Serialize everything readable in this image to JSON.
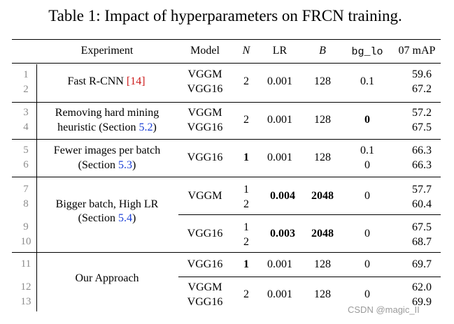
{
  "caption": "Table 1: Impact of hyperparameters on FRCN training.",
  "headers": {
    "experiment": "Experiment",
    "model": "Model",
    "n": "N",
    "lr": "LR",
    "b": "B",
    "bg_lo": "bg_lo",
    "map": "07 mAP"
  },
  "groups": [
    {
      "name": "Fast R-CNN",
      "ref": "[14]",
      "rows": [
        {
          "idx": "1",
          "model": "VGGM",
          "n": "2",
          "lr": "0.001",
          "b": "128",
          "bg_lo": "0.1",
          "map": "59.6"
        },
        {
          "idx": "2",
          "model": "VGG16",
          "n": "2",
          "lr": "0.001",
          "b": "128",
          "bg_lo": "0.1",
          "map": "67.2"
        }
      ]
    },
    {
      "name_line1": "Removing hard mining",
      "name_line2": "heuristic (Section ",
      "section": "5.2",
      "rows": [
        {
          "idx": "3",
          "model": "VGGM",
          "n": "2",
          "lr": "0.001",
          "b": "128",
          "bg_lo": "0",
          "map": "57.2"
        },
        {
          "idx": "4",
          "model": "VGG16",
          "n": "2",
          "lr": "0.001",
          "b": "128",
          "bg_lo": "0",
          "map": "67.5"
        }
      ]
    },
    {
      "name_line1": "Fewer images per batch",
      "name_line2": "(Section ",
      "section": "5.3",
      "rows": [
        {
          "idx": "5",
          "model": "VGG16",
          "n": "1",
          "lr": "0.001",
          "b": "128",
          "bg_lo": "0.1",
          "map": "66.3"
        },
        {
          "idx": "6",
          "model": "VGG16",
          "n": "1",
          "lr": "0.001",
          "b": "128",
          "bg_lo": "0",
          "map": "66.3"
        }
      ]
    },
    {
      "name_line1": "Bigger batch, High LR",
      "name_line2": "(Section ",
      "section": "5.4",
      "rows": [
        {
          "idx": "7",
          "model": "VGGM",
          "n": "1",
          "lr": "0.004",
          "b": "2048",
          "bg_lo": "0",
          "map": "57.7"
        },
        {
          "idx": "8",
          "model": "VGGM",
          "n": "2",
          "lr": "0.004",
          "b": "2048",
          "bg_lo": "0",
          "map": "60.4"
        },
        {
          "idx": "9",
          "model": "VGG16",
          "n": "1",
          "lr": "0.003",
          "b": "2048",
          "bg_lo": "0",
          "map": "67.5"
        },
        {
          "idx": "10",
          "model": "VGG16",
          "n": "2",
          "lr": "0.003",
          "b": "2048",
          "bg_lo": "0",
          "map": "68.7"
        }
      ]
    },
    {
      "name": "Our Approach",
      "rows": [
        {
          "idx": "11",
          "model": "VGG16",
          "n": "1",
          "lr": "0.001",
          "b": "128",
          "bg_lo": "0",
          "map": "69.7"
        },
        {
          "idx": "12",
          "model": "VGGM",
          "n": "2",
          "lr": "0.001",
          "b": "128",
          "bg_lo": "0",
          "map": "62.0"
        },
        {
          "idx": "13",
          "model": "VGG16",
          "n": "2",
          "lr": "0.001",
          "b": "128",
          "bg_lo": "0",
          "map": "69.9"
        }
      ]
    }
  ],
  "watermark": "CSDN @magic_II"
}
